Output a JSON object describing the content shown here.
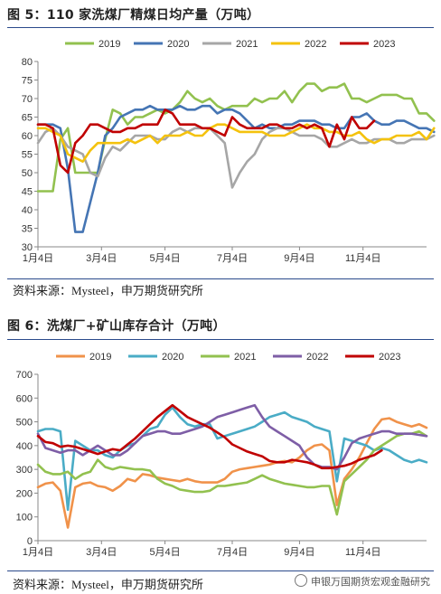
{
  "chart1": {
    "title": "图 5：110 家洗煤厂精煤日均产量（万吨）",
    "source": "资料来源：Mysteel，申万期货研究所",
    "chart_data": {
      "type": "line",
      "title": "图 5：110 家洗煤厂精煤日均产量（万吨）",
      "xlabel": "",
      "ylabel": "",
      "ylim": [
        30,
        80
      ],
      "yticks": [
        30,
        35,
        40,
        45,
        50,
        55,
        60,
        65,
        70,
        75,
        80
      ],
      "xticks": [
        {
          "week": 0,
          "label": "1月4日"
        },
        {
          "week": 8.5,
          "label": "3月4日"
        },
        {
          "week": 17,
          "label": "5月4日"
        },
        {
          "week": 26,
          "label": "7月4日"
        },
        {
          "week": 35,
          "label": "9月4日"
        },
        {
          "week": 43.5,
          "label": "11月4日"
        }
      ],
      "x_domain": [
        0,
        52
      ],
      "legend": "top",
      "grid": false,
      "series": [
        {
          "name": "2019",
          "color": "#92c14f",
          "values": [
            45,
            45,
            45,
            59,
            62,
            50,
            50,
            50,
            50,
            59,
            67,
            66,
            63,
            65,
            65,
            66,
            67,
            66,
            67,
            69,
            72,
            70,
            69,
            70,
            68,
            67,
            68,
            68,
            68,
            70,
            69,
            70,
            70,
            72,
            69,
            72,
            74,
            74,
            72,
            73,
            73,
            74,
            70,
            70,
            69,
            70,
            71,
            71,
            71,
            70,
            70,
            66,
            66,
            64
          ]
        },
        {
          "name": "2020",
          "color": "#4575b4",
          "values": [
            63,
            63,
            63,
            62,
            51,
            34,
            34,
            42,
            50,
            60,
            62,
            65,
            66,
            67,
            67,
            68,
            67,
            67,
            67,
            68,
            67,
            67,
            68,
            68,
            66,
            67,
            67,
            66,
            64,
            62,
            63,
            62,
            62,
            63,
            63,
            64,
            64,
            64,
            63,
            63,
            62,
            62,
            65,
            65,
            66,
            64,
            63,
            63,
            64,
            64,
            63,
            62,
            62,
            61
          ]
        },
        {
          "name": "2021",
          "color": "#a6a6a6",
          "values": [
            58,
            61,
            62,
            60,
            57,
            56,
            55,
            50,
            49,
            54,
            57,
            56,
            58,
            60,
            60,
            60,
            59,
            59,
            61,
            62,
            61,
            62,
            62,
            62,
            60,
            58,
            46,
            50,
            53,
            55,
            59,
            61,
            62,
            62,
            61,
            60,
            60,
            60,
            59,
            57,
            57,
            58,
            59,
            58,
            58,
            59,
            59,
            59,
            58,
            58,
            59,
            59,
            59,
            60
          ]
        },
        {
          "name": "2022",
          "color": "#f4c20d",
          "values": [
            62,
            62,
            61,
            60,
            55,
            54,
            53,
            56,
            58,
            58,
            58,
            58,
            59,
            58,
            59,
            60,
            58,
            60,
            60,
            60,
            61,
            60,
            60,
            62,
            63,
            63,
            62,
            61,
            61,
            61,
            61,
            60,
            60,
            60,
            61,
            62,
            63,
            62,
            62,
            61,
            61,
            60,
            60,
            61,
            59,
            58,
            59,
            59,
            60,
            60,
            60,
            61,
            59,
            62
          ]
        },
        {
          "name": "2023",
          "color": "#c00000",
          "values": [
            63,
            63,
            62,
            52,
            50,
            58,
            60,
            63,
            63,
            62,
            61,
            61,
            62,
            62,
            63,
            63,
            63,
            67,
            66,
            63,
            63,
            63,
            62,
            62,
            61,
            60,
            65,
            63,
            62,
            62,
            62,
            63,
            63,
            62,
            62,
            63,
            62,
            63,
            62,
            57,
            63,
            59,
            65,
            62,
            62,
            64
          ]
        }
      ]
    }
  },
  "chart2": {
    "title": "图 6：洗煤厂+矿山库存合计（万吨）",
    "source": "资料来源：Mysteel，申万期货研究所",
    "watermark": "申银万国期货宏观金融研究",
    "chart_data": {
      "type": "line",
      "title": "图 6：洗煤厂+矿山库存合计（万吨）",
      "xlabel": "",
      "ylabel": "",
      "ylim": [
        0,
        700
      ],
      "yticks": [
        0,
        100,
        200,
        300,
        400,
        500,
        600,
        700
      ],
      "xticks": [
        {
          "week": 0,
          "label": "1月4日"
        },
        {
          "week": 8.5,
          "label": "3月4日"
        },
        {
          "week": 17,
          "label": "5月4日"
        },
        {
          "week": 26,
          "label": "7月4日"
        },
        {
          "week": 35,
          "label": "9月4日"
        },
        {
          "week": 43.5,
          "label": "11月4日"
        }
      ],
      "x_domain": [
        0,
        52
      ],
      "legend": "top",
      "grid": false,
      "series": [
        {
          "name": "2019",
          "color": "#f0924a",
          "values": [
            225,
            240,
            245,
            210,
            55,
            225,
            240,
            245,
            230,
            225,
            210,
            230,
            260,
            250,
            280,
            275,
            265,
            260,
            255,
            250,
            260,
            250,
            245,
            245,
            245,
            260,
            290,
            300,
            305,
            310,
            315,
            320,
            330,
            335,
            330,
            350,
            380,
            400,
            405,
            380,
            150,
            260,
            300,
            350,
            410,
            470,
            510,
            515,
            500,
            490,
            480,
            490,
            475
          ]
        },
        {
          "name": "2020",
          "color": "#4aacc6",
          "values": [
            460,
            470,
            470,
            460,
            130,
            420,
            400,
            380,
            380,
            360,
            350,
            380,
            400,
            410,
            440,
            470,
            480,
            530,
            560,
            520,
            490,
            480,
            490,
            490,
            430,
            440,
            450,
            460,
            470,
            480,
            500,
            520,
            530,
            540,
            520,
            510,
            500,
            480,
            470,
            460,
            250,
            430,
            420,
            410,
            400,
            380,
            390,
            380,
            360,
            340,
            330,
            340,
            330
          ]
        },
        {
          "name": "2021",
          "color": "#92c14f",
          "values": [
            320,
            290,
            280,
            280,
            290,
            260,
            280,
            290,
            340,
            310,
            300,
            310,
            305,
            300,
            300,
            295,
            260,
            240,
            230,
            215,
            210,
            205,
            205,
            210,
            230,
            230,
            235,
            240,
            245,
            260,
            275,
            260,
            250,
            240,
            235,
            230,
            225,
            225,
            230,
            230,
            110,
            250,
            280,
            310,
            340,
            380,
            400,
            420,
            440,
            450,
            450,
            460,
            440
          ]
        },
        {
          "name": "2022",
          "color": "#7e5ea6",
          "values": [
            450,
            390,
            380,
            370,
            380,
            380,
            360,
            380,
            400,
            380,
            360,
            360,
            380,
            410,
            440,
            450,
            460,
            460,
            450,
            450,
            460,
            470,
            480,
            500,
            520,
            530,
            540,
            550,
            560,
            570,
            520,
            480,
            460,
            440,
            420,
            400,
            350,
            320,
            310,
            310,
            300,
            350,
            410,
            430,
            440,
            450,
            460,
            460,
            450,
            450,
            450,
            445,
            440
          ]
        },
        {
          "name": "2023",
          "color": "#c00000",
          "values": [
            440,
            415,
            410,
            395,
            400,
            395,
            385,
            375,
            365,
            375,
            385,
            380,
            405,
            430,
            460,
            490,
            520,
            545,
            570,
            545,
            520,
            505,
            490,
            475,
            455,
            435,
            405,
            390,
            375,
            365,
            355,
            335,
            330,
            330,
            340,
            335,
            330,
            320,
            305,
            305,
            310,
            315,
            325,
            340,
            350,
            360,
            380
          ]
        }
      ]
    }
  }
}
